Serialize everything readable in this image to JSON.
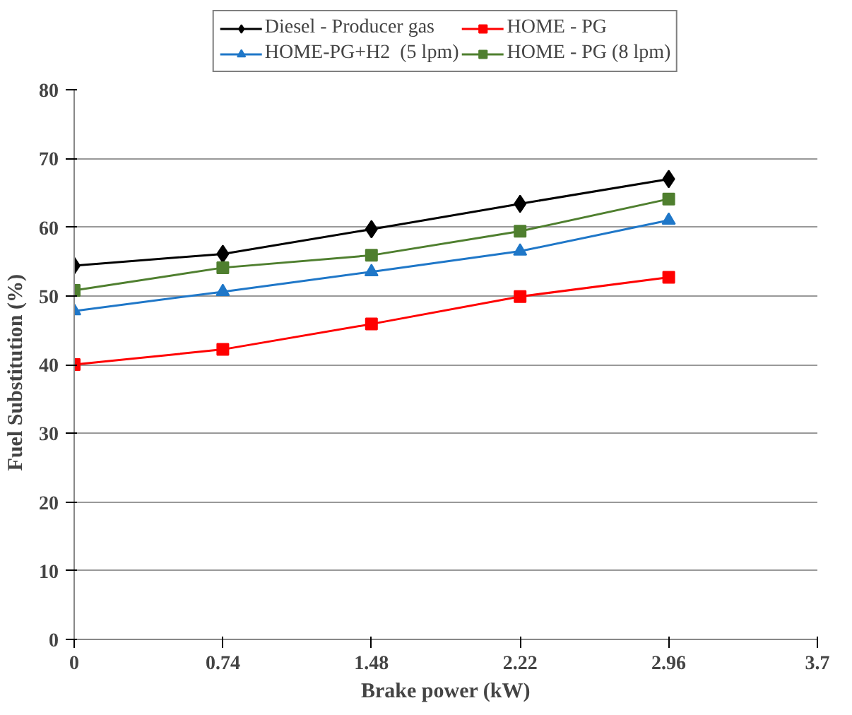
{
  "chart_data": {
    "type": "line",
    "xlabel": "Brake power (kW)",
    "ylabel": "Fuel Substitution    (%)",
    "x": [
      0,
      0.74,
      1.48,
      2.22,
      2.96
    ],
    "series": [
      {
        "name": "Diesel - Producer gas",
        "color": "#000000",
        "marker": "diamond",
        "values": [
          54.4,
          56.1,
          59.7,
          63.4,
          67.0
        ]
      },
      {
        "name": "HOME - PG",
        "color": "#ff0000",
        "marker": "square",
        "values": [
          40.0,
          42.2,
          45.9,
          49.9,
          52.7
        ]
      },
      {
        "name": "HOME-PG+H2  (5 lpm)",
        "color": "#1f77c8",
        "marker": "triangle",
        "values": [
          47.8,
          50.6,
          53.5,
          56.5,
          61.0
        ]
      },
      {
        "name": "HOME - PG (8 lpm)",
        "color": "#4f7f2f",
        "marker": "square",
        "values": [
          50.8,
          54.1,
          55.9,
          59.4,
          64.1
        ]
      }
    ],
    "xlim": [
      0,
      3.7
    ],
    "xticks": [
      0,
      0.74,
      1.48,
      2.22,
      2.96,
      3.7
    ],
    "ylim": [
      0,
      80
    ],
    "yticks": [
      0,
      10,
      20,
      30,
      40,
      50,
      60,
      70,
      80
    ],
    "grid": "y",
    "legend": "top",
    "line_style": "solid"
  }
}
